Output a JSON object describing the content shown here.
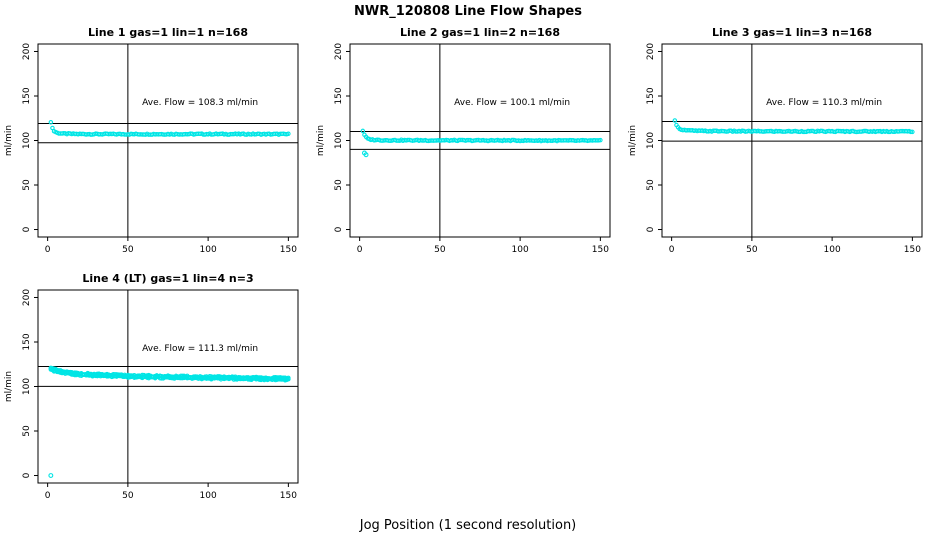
{
  "page": {
    "title": "NWR_120808  Line Flow Shapes",
    "xlabel": "Jog Position (1 second resolution)"
  },
  "chart_data": [
    {
      "type": "scatter",
      "title": "Line 1 gas=1 lin=1 n=168",
      "n": 168,
      "ave_flow_ml_min": 108.3,
      "annotation": {
        "text": "Ave. Flow =  108.3  ml/min",
        "x": 95,
        "y": 140
      },
      "xlim": [
        0,
        150
      ],
      "ylim": [
        0,
        200
      ],
      "xticks": [
        0,
        50,
        100,
        150
      ],
      "yticks": [
        0,
        50,
        100,
        150,
        200
      ],
      "ylabel": "ml/min",
      "vline_x": 50,
      "ref_lines": [
        97.5,
        119.1
      ],
      "point_color": "#00e5e5",
      "series": {
        "name": "flow",
        "anchors": [
          [
            2,
            121
          ],
          [
            3,
            114
          ],
          [
            4,
            110.5
          ],
          [
            6,
            108.5
          ],
          [
            10,
            107.6
          ],
          [
            20,
            107.2
          ],
          [
            50,
            107.1
          ],
          [
            100,
            107.2
          ],
          [
            150,
            107.1
          ]
        ],
        "jitter": 0.6,
        "passes": [
          0
        ]
      },
      "outliers": []
    },
    {
      "type": "scatter",
      "title": "Line 2 gas=1 lin=2 n=168",
      "n": 168,
      "ave_flow_ml_min": 100.1,
      "annotation": {
        "text": "Ave. Flow =  100.1  ml/min",
        "x": 95,
        "y": 140
      },
      "xlim": [
        0,
        150
      ],
      "ylim": [
        0,
        200
      ],
      "xticks": [
        0,
        50,
        100,
        150
      ],
      "yticks": [
        0,
        50,
        100,
        150,
        200
      ],
      "ylabel": "ml/min",
      "vline_x": 50,
      "ref_lines": [
        90.1,
        110.1
      ],
      "point_color": "#00e5e5",
      "series": {
        "name": "flow",
        "anchors": [
          [
            2,
            111
          ],
          [
            3,
            106
          ],
          [
            5,
            101.8
          ],
          [
            8,
            100.8
          ],
          [
            15,
            100.3
          ],
          [
            50,
            100.1
          ],
          [
            100,
            100.0
          ],
          [
            150,
            99.8
          ]
        ],
        "jitter": 0.6,
        "passes": [
          0
        ]
      },
      "outliers": [
        [
          3,
          86
        ],
        [
          4,
          84
        ]
      ]
    },
    {
      "type": "scatter",
      "title": "Line 3 gas=1 lin=3 n=168",
      "n": 168,
      "ave_flow_ml_min": 110.3,
      "annotation": {
        "text": "Ave. Flow =  110.3  ml/min",
        "x": 95,
        "y": 140
      },
      "xlim": [
        0,
        150
      ],
      "ylim": [
        0,
        200
      ],
      "xticks": [
        0,
        50,
        100,
        150
      ],
      "yticks": [
        0,
        50,
        100,
        150,
        200
      ],
      "ylabel": "ml/min",
      "vline_x": 50,
      "ref_lines": [
        99.3,
        121.3
      ],
      "point_color": "#00e5e5",
      "series": {
        "name": "flow",
        "anchors": [
          [
            2,
            123
          ],
          [
            3,
            118
          ],
          [
            4,
            114.5
          ],
          [
            6,
            112.3
          ],
          [
            10,
            111.2
          ],
          [
            20,
            110.6
          ],
          [
            50,
            110.3
          ],
          [
            100,
            110.2
          ],
          [
            150,
            110.2
          ]
        ],
        "jitter": 0.6,
        "passes": [
          0
        ]
      },
      "outliers": []
    },
    {
      "type": "scatter",
      "title": "Line 4 (LT) gas=1 lin=4 n=3",
      "n": 3,
      "ave_flow_ml_min": 111.3,
      "annotation": {
        "text": "Ave. Flow =  111.3  ml/min",
        "x": 95,
        "y": 140
      },
      "xlim": [
        0,
        150
      ],
      "ylim": [
        0,
        200
      ],
      "xticks": [
        0,
        50,
        100,
        150
      ],
      "yticks": [
        0,
        50,
        100,
        150,
        200
      ],
      "ylabel": "ml/min",
      "vline_x": 50,
      "ref_lines": [
        100.2,
        122.4
      ],
      "point_color": "#00e5e5",
      "series": {
        "name": "flow",
        "anchors": [
          [
            2,
            120
          ],
          [
            4,
            118.5
          ],
          [
            8,
            116.5
          ],
          [
            15,
            114.5
          ],
          [
            30,
            112.8
          ],
          [
            50,
            111.6
          ],
          [
            75,
            110.6
          ],
          [
            100,
            109.9
          ],
          [
            125,
            109.2
          ],
          [
            150,
            108.6
          ]
        ],
        "jitter": 0.9,
        "passes": [
          -0.8,
          0,
          0.8
        ]
      },
      "outliers": [
        [
          2,
          0
        ]
      ]
    }
  ]
}
